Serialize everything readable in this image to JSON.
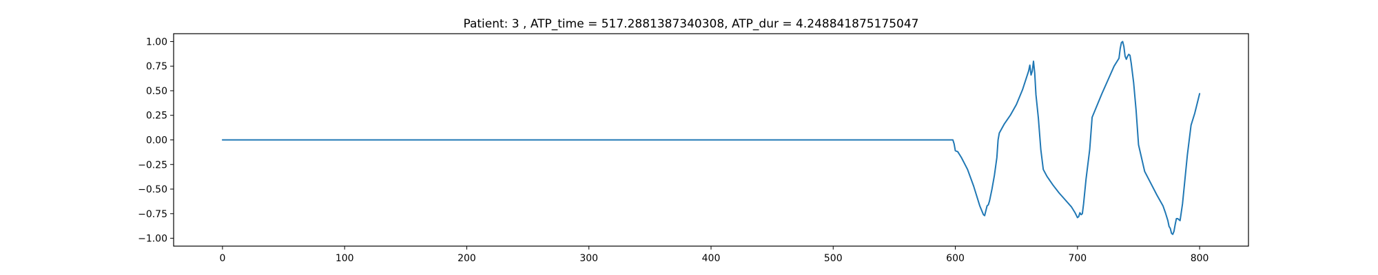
{
  "chart_data": {
    "type": "line",
    "title": "Patient: 3 , ATP_time = 517.2881387340308, ATP_dur = 4.248841875175047",
    "xlabel": "",
    "ylabel": "",
    "xlim": [
      -40,
      840
    ],
    "ylim": [
      -1.08,
      1.08
    ],
    "xticks": [
      0,
      100,
      200,
      300,
      400,
      500,
      600,
      700,
      800
    ],
    "yticks": [
      -1.0,
      -0.75,
      -0.5,
      -0.25,
      0.0,
      0.25,
      0.5,
      0.75,
      1.0
    ],
    "ytick_labels": [
      "−1.00",
      "−0.75",
      "−0.50",
      "−0.25",
      "0.00",
      "0.25",
      "0.50",
      "0.75",
      "1.00"
    ],
    "grid": false,
    "series": [
      {
        "color": "#1f77b4",
        "x": [
          0,
          100,
          200,
          300,
          400,
          500,
          598,
          599,
          600,
          602,
          605,
          610,
          615,
          620,
          623,
          624,
          625,
          626,
          627,
          628,
          630,
          632,
          634,
          635,
          636,
          640,
          645,
          650,
          655,
          660,
          661,
          662,
          663,
          664,
          665,
          666,
          668,
          670,
          672,
          675,
          680,
          685,
          690,
          695,
          698,
          700,
          701,
          702,
          703,
          704,
          705,
          707,
          710,
          712,
          715,
          720,
          725,
          730,
          734,
          735,
          736,
          737,
          738,
          739,
          740,
          741,
          742,
          743,
          744,
          746,
          748,
          750,
          755,
          760,
          765,
          770,
          772,
          774,
          775,
          776,
          777,
          778,
          779,
          780,
          781,
          782,
          784,
          786,
          788,
          790,
          793,
          796,
          800
        ],
        "y": [
          0,
          0,
          0,
          0,
          0,
          0,
          0,
          -0.04,
          -0.11,
          -0.12,
          -0.18,
          -0.3,
          -0.47,
          -0.67,
          -0.76,
          -0.77,
          -0.72,
          -0.67,
          -0.66,
          -0.62,
          -0.5,
          -0.36,
          -0.18,
          0.0,
          0.07,
          0.16,
          0.25,
          0.36,
          0.51,
          0.7,
          0.76,
          0.66,
          0.7,
          0.8,
          0.68,
          0.46,
          0.22,
          -0.1,
          -0.3,
          -0.37,
          -0.46,
          -0.54,
          -0.61,
          -0.68,
          -0.74,
          -0.79,
          -0.78,
          -0.74,
          -0.76,
          -0.75,
          -0.65,
          -0.4,
          -0.1,
          0.23,
          0.32,
          0.47,
          0.61,
          0.75,
          0.83,
          0.93,
          0.99,
          1.0,
          0.95,
          0.85,
          0.82,
          0.85,
          0.87,
          0.86,
          0.78,
          0.58,
          0.3,
          -0.05,
          -0.32,
          -0.44,
          -0.56,
          -0.67,
          -0.74,
          -0.82,
          -0.88,
          -0.9,
          -0.95,
          -0.96,
          -0.93,
          -0.86,
          -0.8,
          -0.8,
          -0.82,
          -0.65,
          -0.4,
          -0.15,
          0.15,
          0.27,
          0.47
        ]
      }
    ]
  }
}
